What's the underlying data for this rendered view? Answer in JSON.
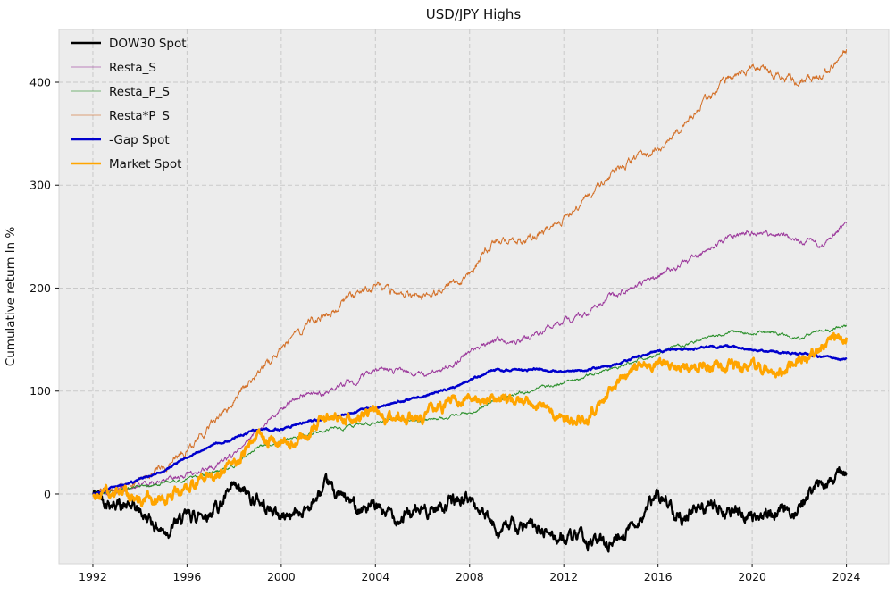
{
  "figure": {
    "title": "USD/JPY Highs",
    "background": "#ffffff",
    "plot_background": "#ececec",
    "grid_color": "#c9c9c9",
    "tick_color": "#262626"
  },
  "chart_data": {
    "type": "line",
    "title": "USD/JPY Highs",
    "xlabel": "",
    "ylabel": "Cumulative return ln %",
    "grid": true,
    "grid_style": "dashed",
    "legend_position": "upper-left",
    "xlim": [
      1990.56,
      2025.8
    ],
    "ylim": [
      -67.7,
      451.2
    ],
    "xticks": [
      1992,
      1996,
      2000,
      2004,
      2008,
      2012,
      2016,
      2020,
      2024
    ],
    "yticks": [
      0,
      100,
      200,
      300,
      400
    ],
    "x": [
      1992,
      1993,
      1994,
      1995,
      1996,
      1997,
      1998,
      1999,
      2000,
      2001,
      2002,
      2003,
      2004,
      2005,
      2006,
      2007,
      2008,
      2009,
      2010,
      2011,
      2012,
      2013,
      2014,
      2015,
      2016,
      2017,
      2018,
      2019,
      2020,
      2021,
      2022,
      2023,
      2024
    ],
    "series": [
      {
        "name": "DOW30 Spot",
        "color": "#000000",
        "width": 2.2,
        "volatility": 14,
        "values": [
          0,
          -8,
          -18,
          -35,
          -24,
          -16,
          2,
          -5,
          -22,
          -15,
          6,
          -10,
          -16,
          -22,
          -17,
          -9,
          -4,
          -33,
          -31,
          -36,
          -43,
          -47,
          -46,
          -28,
          -2,
          -19,
          -13,
          -16,
          -19,
          -21,
          -12,
          14,
          20
        ]
      },
      {
        "name": "Resta_S",
        "color": "#993399",
        "width": 1.0,
        "volatility": 6,
        "values": [
          0,
          4,
          9,
          12,
          18,
          26,
          38,
          62,
          82,
          97,
          98,
          110,
          121,
          119,
          115,
          124,
          136,
          150,
          148,
          158,
          168,
          176,
          192,
          203,
          211,
          224,
          236,
          250,
          255,
          252,
          247,
          243,
          263
        ]
      },
      {
        "name": "Resta_P_S",
        "color": "#228B22",
        "width": 1.0,
        "volatility": 3.5,
        "values": [
          0,
          3,
          7,
          10,
          14,
          20,
          27,
          45,
          52,
          58,
          62,
          66,
          70,
          73,
          71,
          74,
          79,
          91,
          97,
          103,
          108,
          115,
          122,
          128,
          136,
          144,
          152,
          157,
          158,
          156,
          152,
          158,
          163
        ]
      },
      {
        "name": "Resta*P_S",
        "color": "#D2691E",
        "width": 1.0,
        "volatility": 8,
        "values": [
          0,
          6,
          14,
          25,
          45,
          65,
          92,
          118,
          141,
          163,
          176,
          192,
          203,
          196,
          190,
          201,
          216,
          245,
          243,
          255,
          266,
          288,
          312,
          325,
          334,
          356,
          382,
          406,
          413,
          408,
          399,
          406,
          432
        ]
      },
      {
        "name": "-Gap Spot",
        "color": "#0000CD",
        "width": 2.4,
        "volatility": 2.2,
        "values": [
          0,
          7,
          13,
          22,
          36,
          46,
          55,
          62,
          63,
          69,
          74,
          79,
          84,
          90,
          95,
          101,
          110,
          121,
          120,
          121,
          119,
          121,
          125,
          132,
          139,
          141,
          142,
          143,
          141,
          138,
          136,
          133,
          131
        ]
      },
      {
        "name": "Market Spot",
        "color": "#FFA500",
        "width": 2.8,
        "volatility": 11,
        "values": [
          0,
          3,
          -6,
          -9,
          8,
          16,
          30,
          58,
          49,
          52,
          76,
          69,
          77,
          72,
          74,
          87,
          98,
          93,
          91,
          87,
          72,
          73,
          100,
          125,
          128,
          126,
          126,
          125,
          122,
          116,
          128,
          145,
          152
        ]
      }
    ]
  }
}
